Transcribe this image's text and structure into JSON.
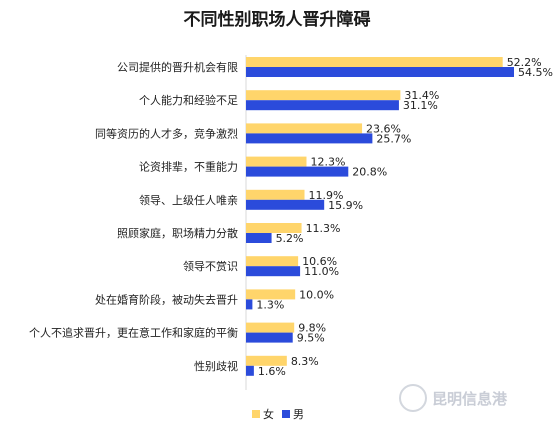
{
  "chart_data": {
    "type": "bar",
    "orientation": "horizontal",
    "title": "不同性别职场人晋升障碍",
    "categories": [
      "公司提供的晋升机会有限",
      "个人能力和经验不足",
      "同等资历的人才多，竞争激烈",
      "论资排辈，不重能力",
      "领导、上级任人唯亲",
      "照顾家庭，职场精力分散",
      "领导不赏识",
      "处在婚育阶段，被动失去晋升",
      "个人不追求晋升，更在意工作和家庭的平衡",
      "性别歧视"
    ],
    "series": [
      {
        "name": "女",
        "color": "#FFD56B",
        "values": [
          52.2,
          31.4,
          23.6,
          12.3,
          11.9,
          11.3,
          10.6,
          10.0,
          9.8,
          8.3
        ],
        "labels": [
          "52.2%",
          "31.4%",
          "23.6%",
          "12.3%",
          "11.9%",
          "11.3%",
          "10.6%",
          "10.0%",
          "9.8%",
          "8.3%"
        ]
      },
      {
        "name": "男",
        "color": "#2B4BDB",
        "values": [
          54.5,
          31.1,
          25.7,
          20.8,
          15.9,
          5.2,
          11.0,
          1.3,
          9.5,
          1.6
        ],
        "labels": [
          "54.5%",
          "31.1%",
          "25.7%",
          "20.8%",
          "15.9%",
          "5.2%",
          "11.0%",
          "1.3%",
          "9.5%",
          "1.6%"
        ]
      }
    ],
    "xlim": [
      0,
      54.5
    ],
    "grid": false,
    "legend_position": "bottom"
  },
  "watermark": "昆明信息港"
}
